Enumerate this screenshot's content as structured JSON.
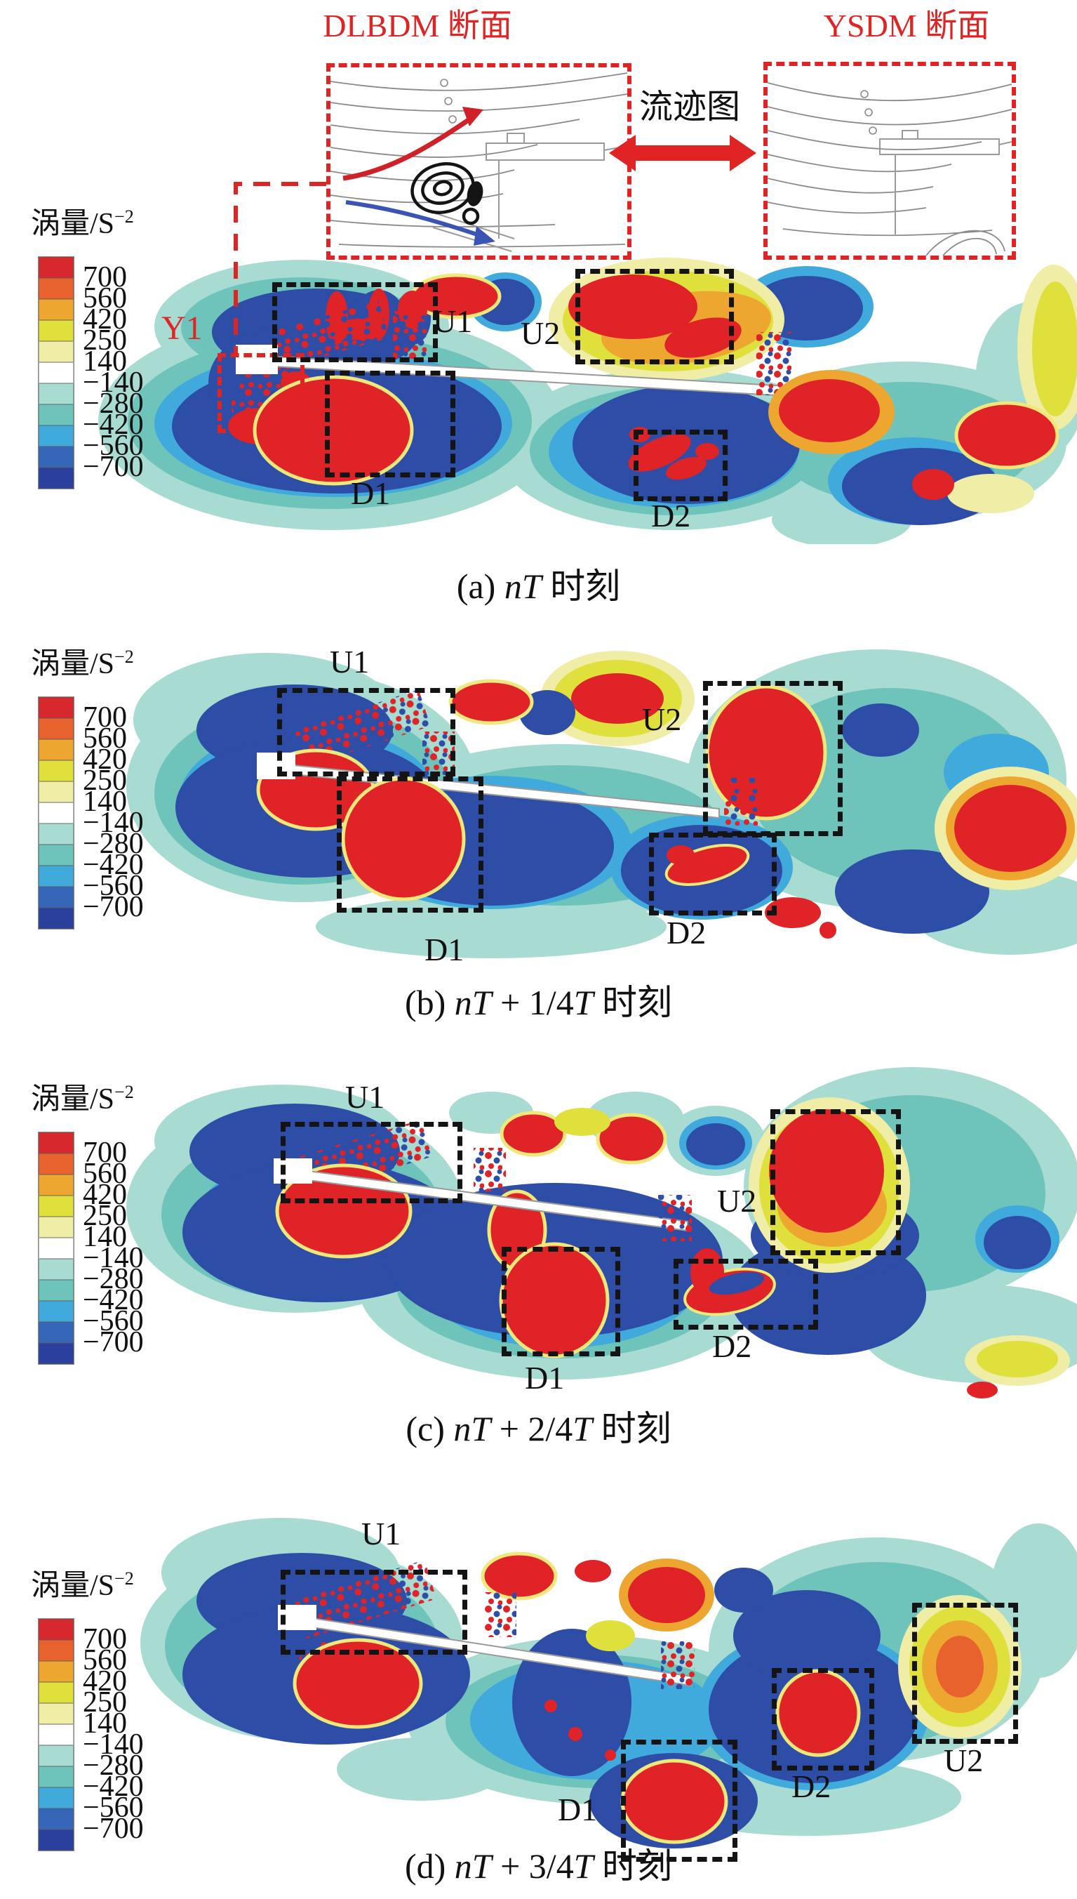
{
  "figure": {
    "insets": {
      "left_title": "DLBDM 断面",
      "right_title": "YSDM 断面",
      "center_label": "流迹图",
      "y1_label": "Y1"
    },
    "legend": {
      "title_base": "涡量/S",
      "title_sup": "−2",
      "labels": [
        "700",
        "560",
        "420",
        "250",
        "140",
        "−140",
        "−280",
        "−420",
        "−560",
        "−700"
      ],
      "colors": [
        "#d7282d",
        "#e8622d",
        "#eda730",
        "#dfe03c",
        "#efeda6",
        "#ffffff",
        "#a8dbd2",
        "#6ec4ba",
        "#41aadc",
        "#3566b8",
        "#2b3f9c"
      ]
    },
    "panels": [
      {
        "id": "a",
        "regions": [
          "U1",
          "U2",
          "D1",
          "D2"
        ],
        "caption": [
          {
            "t": "(a) ",
            "i": false
          },
          {
            "t": "nT",
            "i": true
          },
          {
            "t": " 时刻",
            "i": false
          }
        ]
      },
      {
        "id": "b",
        "regions": [
          "U1",
          "U2",
          "D1",
          "D2"
        ],
        "caption": [
          {
            "t": "(b) ",
            "i": false
          },
          {
            "t": "nT",
            "i": true
          },
          {
            "t": " + 1/4",
            "i": false
          },
          {
            "t": "T",
            "i": true
          },
          {
            "t": " 时刻",
            "i": false
          }
        ]
      },
      {
        "id": "c",
        "regions": [
          "U1",
          "U2",
          "D1",
          "D2"
        ],
        "caption": [
          {
            "t": "(c) ",
            "i": false
          },
          {
            "t": "nT",
            "i": true
          },
          {
            "t": " + 2/4",
            "i": false
          },
          {
            "t": "T",
            "i": true
          },
          {
            "t": " 时刻",
            "i": false
          }
        ]
      },
      {
        "id": "d",
        "regions": [
          "U1",
          "U2",
          "D1",
          "D2"
        ],
        "caption": [
          {
            "t": "(d) ",
            "i": false
          },
          {
            "t": "nT",
            "i": true
          },
          {
            "t": " + 3/4",
            "i": false
          },
          {
            "t": "T",
            "i": true
          },
          {
            "t": " 时刻",
            "i": false
          }
        ]
      }
    ]
  },
  "chart_data": {
    "type": "heatmap",
    "quantity_label": "涡量/S⁻²",
    "colorbar_tick_values": [
      700,
      560,
      420,
      250,
      140,
      -140,
      -280,
      -420,
      -560,
      -700
    ],
    "colorbar_colors_top_to_bottom": [
      "#d7282d",
      "#e8622d",
      "#eda730",
      "#dfe03c",
      "#efeda6",
      "#ffffff",
      "#a8dbd2",
      "#6ec4ba",
      "#41aadc",
      "#3566b8",
      "#2b3f9c"
    ],
    "panels": [
      {
        "index": "(a)",
        "time_label": "nT 时刻",
        "annotated_regions": [
          "U1",
          "U2",
          "D1",
          "D2"
        ]
      },
      {
        "index": "(b)",
        "time_label": "nT + 1/4T 时刻",
        "annotated_regions": [
          "U1",
          "U2",
          "D1",
          "D2"
        ]
      },
      {
        "index": "(c)",
        "time_label": "nT + 2/4T 时刻",
        "annotated_regions": [
          "U1",
          "U2",
          "D1",
          "D2"
        ]
      },
      {
        "index": "(d)",
        "time_label": "nT + 3/4T 时刻",
        "annotated_regions": [
          "U1",
          "U2",
          "D1",
          "D2"
        ]
      }
    ],
    "insets": [
      {
        "title": "DLBDM 断面",
        "content": "streamline sketch"
      },
      {
        "title": "YSDM 断面",
        "content": "streamline sketch"
      }
    ],
    "inset_link_label": "流迹图",
    "extra_region_label": "Y1"
  }
}
